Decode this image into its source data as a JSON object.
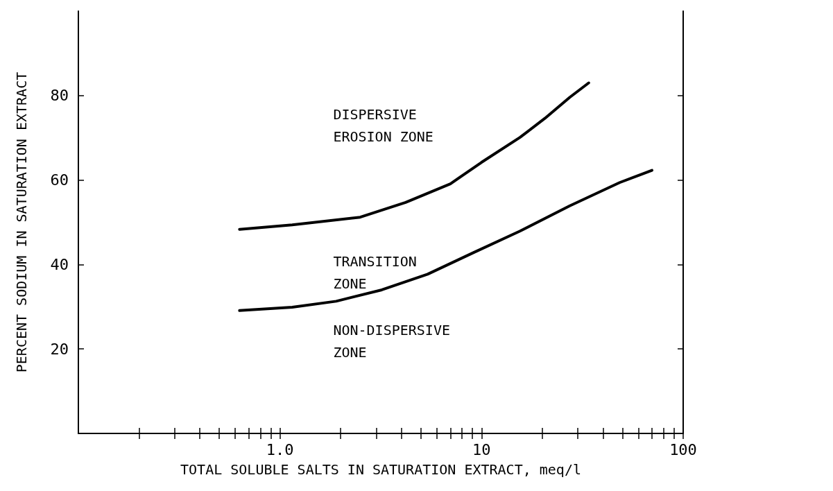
{
  "chart_data": {
    "type": "line",
    "xlabel": "TOTAL SOLUBLE SALTS IN SATURATION EXTRACT, meq/l",
    "ylabel": "PERCENT SODIUM IN SATURATION EXTRACT",
    "log": "x",
    "marker": "none",
    "xlim": [
      0.1,
      100
    ],
    "ylim": [
      0,
      100
    ],
    "xticks": [
      {
        "value": 0.2,
        "label": null
      },
      {
        "value": 0.3,
        "label": null
      },
      {
        "value": 0.4,
        "label": null
      },
      {
        "value": 0.5,
        "label": null
      },
      {
        "value": 0.6,
        "label": null
      },
      {
        "value": 0.7,
        "label": null
      },
      {
        "value": 0.8,
        "label": null
      },
      {
        "value": 0.9,
        "label": null
      },
      {
        "value": 1,
        "label": "1.0"
      },
      {
        "value": 2,
        "label": null
      },
      {
        "value": 3,
        "label": null
      },
      {
        "value": 4,
        "label": null
      },
      {
        "value": 5,
        "label": null
      },
      {
        "value": 6,
        "label": null
      },
      {
        "value": 7,
        "label": null
      },
      {
        "value": 8,
        "label": null
      },
      {
        "value": 9,
        "label": null
      },
      10,
      {
        "value": 20,
        "label": null
      },
      {
        "value": 30,
        "label": null
      },
      {
        "value": 40,
        "label": null
      },
      {
        "value": 50,
        "label": null
      },
      {
        "value": 60,
        "label": null
      },
      {
        "value": 70,
        "label": null
      },
      {
        "value": 80,
        "label": null
      },
      {
        "value": 90,
        "label": null
      },
      100
    ],
    "yticks": [
      20,
      40,
      60,
      80
    ],
    "annotations": [
      "DISPERSIVE\nEROSION ZONE",
      "TRANSITION\nZONE",
      "NON-DISPERSIVE\nZONE"
    ],
    "series": [
      {
        "color": "#000000",
        "x": [
          0.63,
          1.15,
          2.5,
          4.2,
          7.0,
          10,
          15.5,
          20.6,
          27.4,
          34
        ],
        "values": [
          48.3,
          49.4,
          51.2,
          54.7,
          59.1,
          64.2,
          70.1,
          74.6,
          79.6,
          83.0
        ]
      },
      {
        "color": "#000000",
        "x": [
          0.63,
          1.15,
          1.9,
          3.2,
          5.4,
          9.1,
          15.5,
          27.4,
          48.4,
          70
        ],
        "values": [
          29.1,
          29.9,
          31.3,
          34.0,
          37.7,
          42.8,
          47.9,
          53.9,
          59.4,
          62.3
        ]
      }
    ]
  }
}
